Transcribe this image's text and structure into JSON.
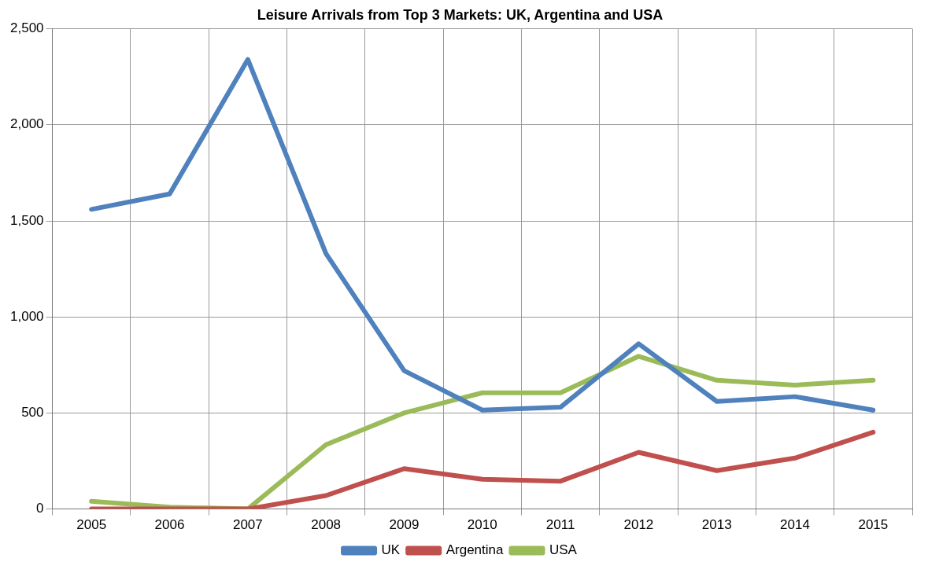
{
  "chart_data": {
    "type": "line",
    "title": "Leisure Arrivals from Top 3 Markets: UK, Argentina and USA",
    "categories": [
      "2005",
      "2006",
      "2007",
      "2008",
      "2009",
      "2010",
      "2011",
      "2012",
      "2013",
      "2014",
      "2015"
    ],
    "series": [
      {
        "name": "UK",
        "color": "#4f81bd",
        "values": [
          1560,
          1640,
          2340,
          1330,
          720,
          515,
          530,
          860,
          560,
          585,
          515
        ]
      },
      {
        "name": "Argentina",
        "color": "#c0504d",
        "values": [
          0,
          0,
          0,
          70,
          210,
          155,
          145,
          295,
          200,
          265,
          400
        ]
      },
      {
        "name": "USA",
        "color": "#9bbb59",
        "values": [
          40,
          10,
          0,
          335,
          500,
          605,
          605,
          795,
          670,
          645,
          670
        ]
      }
    ],
    "ylim": [
      0,
      2500
    ],
    "yticks": [
      {
        "value": 0,
        "label": "0"
      },
      {
        "value": 500,
        "label": "500"
      },
      {
        "value": 1000,
        "label": "1,000"
      },
      {
        "value": 1500,
        "label": "1,500"
      },
      {
        "value": 2000,
        "label": "2,000"
      },
      {
        "value": 2500,
        "label": "2,500"
      }
    ],
    "grid": true,
    "legend": "bottom",
    "marker": "none",
    "line_style": "solid"
  }
}
